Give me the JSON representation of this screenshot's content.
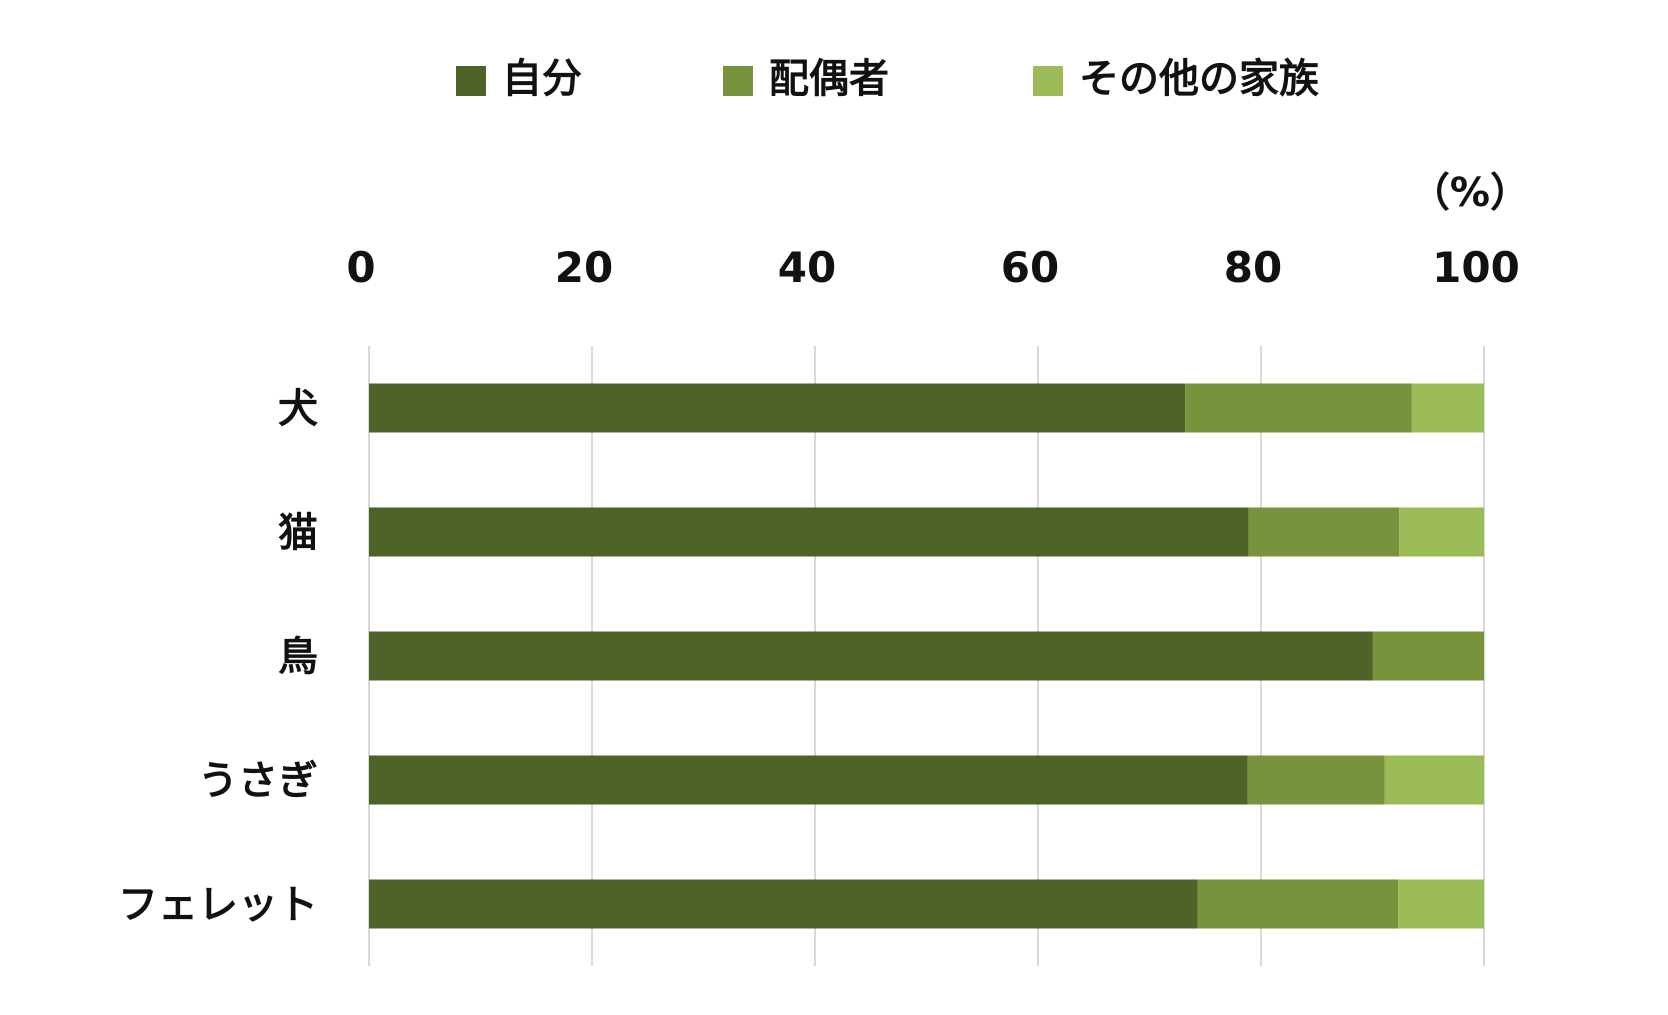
{
  "chart_data": {
    "type": "bar",
    "orientation": "horizontal",
    "stacked": true,
    "categories": [
      "犬",
      "猫",
      "鳥",
      "うさぎ",
      "フェレット"
    ],
    "series": [
      {
        "name": "自分",
        "values": [
          73.2,
          78.9,
          90.0,
          78.8,
          74.3
        ],
        "color": "#4f6228"
      },
      {
        "name": "配偶者",
        "values": [
          20.3,
          13.5,
          10.0,
          12.3,
          18.0
        ],
        "color": "#77933c"
      },
      {
        "name": "その他の家族",
        "values": [
          6.5,
          7.6,
          0.0,
          8.9,
          7.7
        ],
        "color": "#9bbb59"
      }
    ],
    "x_ticks": [
      "0",
      "20",
      "40",
      "60",
      "80",
      "100"
    ],
    "unit_label": "（%）",
    "xlim": [
      0,
      100
    ],
    "x_axis_position": "top",
    "grid": true,
    "legend_position": "top"
  }
}
